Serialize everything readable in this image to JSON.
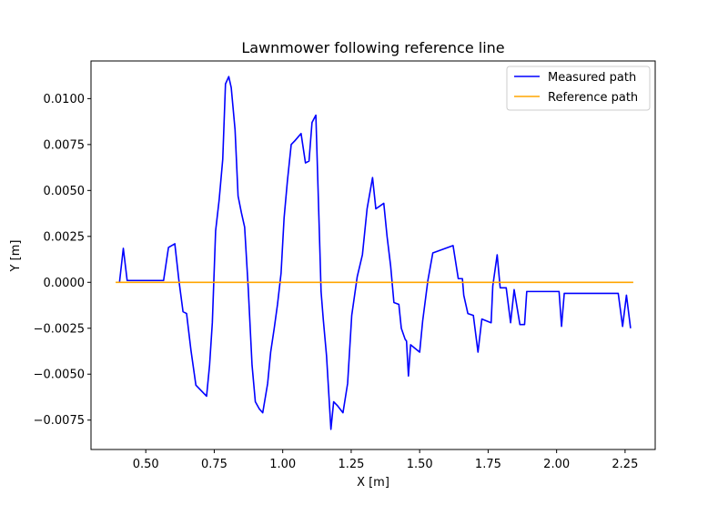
{
  "chart_data": {
    "type": "line",
    "title": "Lawnmower following reference line",
    "xlabel": "X [m]",
    "ylabel": "Y [m]",
    "xlim": [
      0.3,
      2.36
    ],
    "ylim": [
      -0.0091,
      0.01205
    ],
    "xticks": [
      0.5,
      0.75,
      1.0,
      1.25,
      1.5,
      1.75,
      2.0,
      2.25
    ],
    "xtick_labels": [
      "0.50",
      "0.75",
      "1.00",
      "1.25",
      "1.50",
      "1.75",
      "2.00",
      "2.25"
    ],
    "yticks": [
      -0.0075,
      -0.005,
      -0.0025,
      0.0,
      0.0025,
      0.005,
      0.0075,
      0.01
    ],
    "ytick_labels": [
      "−0.0075",
      "−0.0050",
      "−0.0025",
      "0.0000",
      "0.0025",
      "0.0050",
      "0.0075",
      "0.0100"
    ],
    "grid": false,
    "legend_position": "top-right",
    "series": [
      {
        "name": "Measured path",
        "color": "#0000ff",
        "x": [
          0.404,
          0.418,
          0.432,
          0.565,
          0.583,
          0.606,
          0.621,
          0.636,
          0.649,
          0.665,
          0.683,
          0.722,
          0.733,
          0.743,
          0.755,
          0.768,
          0.781,
          0.791,
          0.803,
          0.812,
          0.826,
          0.837,
          0.849,
          0.861,
          0.874,
          0.888,
          0.9,
          0.915,
          0.927,
          0.945,
          0.956,
          0.969,
          0.981,
          0.994,
          1.005,
          1.017,
          1.031,
          1.044,
          1.067,
          1.083,
          1.096,
          1.107,
          1.121,
          1.136,
          1.14,
          1.148,
          1.16,
          1.176,
          1.186,
          1.199,
          1.22,
          1.237,
          1.252,
          1.272,
          1.291,
          1.308,
          1.328,
          1.34,
          1.369,
          1.381,
          1.394,
          1.406,
          1.424,
          1.433,
          1.447,
          1.452,
          1.459,
          1.467,
          1.5,
          1.511,
          1.53,
          1.548,
          1.622,
          1.641,
          1.656,
          1.661,
          1.676,
          1.696,
          1.713,
          1.727,
          1.761,
          1.767,
          1.783,
          1.794,
          1.816,
          1.832,
          1.845,
          1.866,
          1.883,
          1.891,
          1.91,
          2.009,
          2.018,
          2.028,
          2.072,
          2.225,
          2.241,
          2.255,
          2.27
        ],
        "y": [
          0.0,
          0.00185,
          0.0001,
          0.0001,
          0.0019,
          0.0021,
          0.0001,
          -0.0016,
          -0.0017,
          -0.0037,
          -0.0056,
          -0.0062,
          -0.0045,
          -0.0022,
          0.0028,
          0.0045,
          0.0067,
          0.0108,
          0.0112,
          0.0106,
          0.0083,
          0.0047,
          0.0038,
          0.003,
          -0.0003,
          -0.0045,
          -0.0065,
          -0.0069,
          -0.0071,
          -0.0055,
          -0.0038,
          -0.0025,
          -0.0012,
          0.0005,
          0.0035,
          0.0055,
          0.0075,
          0.0077,
          0.0081,
          0.0065,
          0.0066,
          0.0087,
          0.0091,
          0.0016,
          -0.0005,
          -0.002,
          -0.004,
          -0.008,
          -0.0065,
          -0.0067,
          -0.0071,
          -0.0055,
          -0.0018,
          0.0003,
          0.0015,
          0.004,
          0.0057,
          0.004,
          0.0043,
          0.0025,
          0.0009,
          -0.0011,
          -0.0012,
          -0.0025,
          -0.0031,
          -0.0032,
          -0.0051,
          -0.0034,
          -0.0038,
          -0.0021,
          0.0001,
          0.0016,
          0.002,
          0.0002,
          0.0002,
          -0.0007,
          -0.0017,
          -0.0018,
          -0.0038,
          -0.002,
          -0.0022,
          -0.0002,
          0.0015,
          -0.0003,
          -0.0003,
          -0.0022,
          -0.0004,
          -0.0023,
          -0.0023,
          -0.0005,
          -0.0005,
          -0.0005,
          -0.0024,
          -0.0006,
          -0.0006,
          -0.0006,
          -0.0024,
          -0.0007,
          -0.0025
        ]
      },
      {
        "name": "Reference path",
        "color": "#ffa500",
        "x": [
          0.39,
          2.28
        ],
        "y": [
          0.0,
          0.0
        ]
      }
    ]
  }
}
